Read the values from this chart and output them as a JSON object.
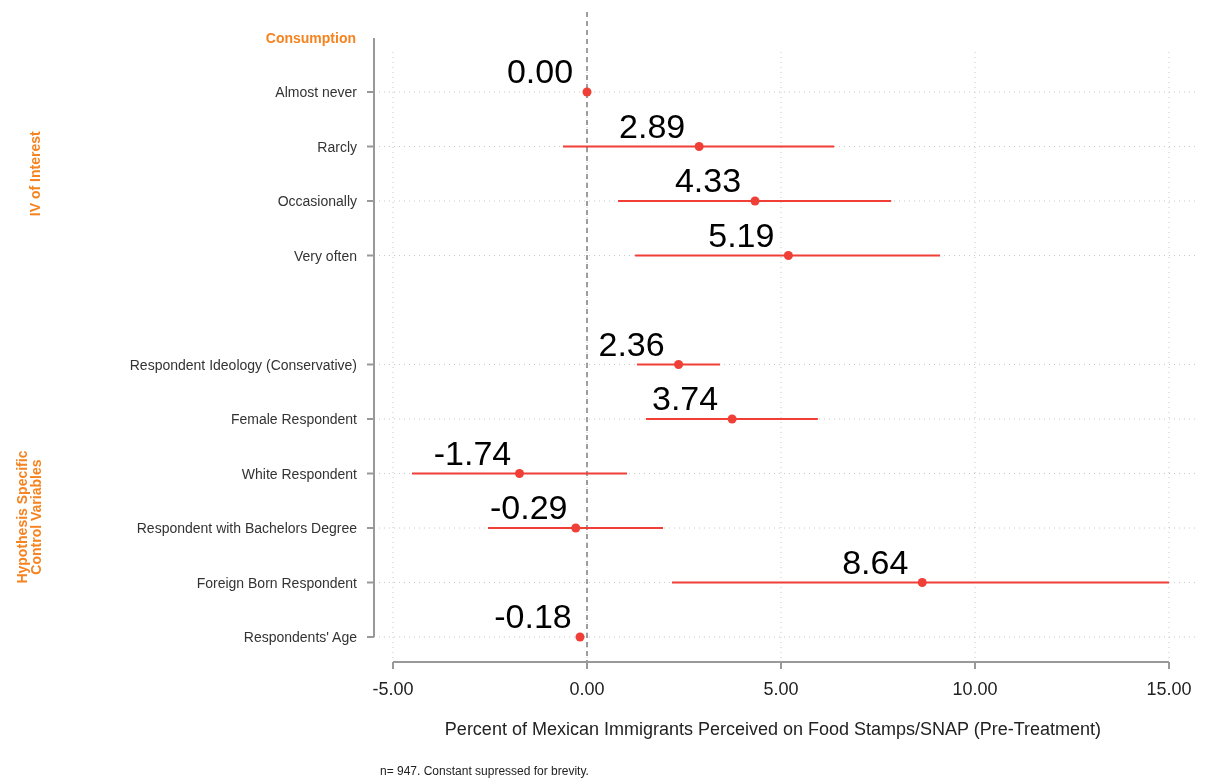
{
  "chart_data": {
    "type": "scatter",
    "orientation": "horizontal",
    "xlabel": "Percent of Mexican Immigrants Perceived on Food Stamps/SNAP (Pre-Treatment)",
    "categories": [
      "Almost never",
      "Rarcly",
      "Occasionally",
      "Very often",
      null,
      "Respondent Ideology (Conservative)",
      "Female Respondent",
      "White Respondent",
      "Respondent with Bachelors Degree",
      "Foreign Born Respondent",
      "Respondents' Age"
    ],
    "series": [
      {
        "color": "#ef3f36",
        "values": [
          0,
          2.89,
          4.33,
          5.19,
          null,
          2.36,
          3.74,
          -1.74,
          -0.29,
          8.64,
          -0.18
        ],
        "errors": [
          null,
          [
            -0.62,
            6.37
          ],
          [
            0.8,
            7.84
          ],
          [
            1.24,
            9.1
          ],
          null,
          [
            1.29,
            3.43
          ],
          [
            1.52,
            5.95
          ],
          [
            -4.51,
            1.03
          ],
          [
            -2.55,
            1.96
          ],
          [
            2.19,
            15
          ],
          null
        ],
        "value_labels": [
          "0.00",
          "2.89",
          "4.33",
          "5.19",
          null,
          "2.36",
          "3.74",
          "-1.74",
          "-0.29",
          "8.64",
          "-0.18"
        ]
      }
    ],
    "xlim": [
      -5,
      15
    ],
    "xticks": [
      {
        "value": -5,
        "label": "-5.00"
      },
      {
        "value": 0,
        "label": "0.00"
      },
      {
        "value": 5,
        "label": "5.00"
      },
      {
        "value": 10,
        "label": "10.00"
      },
      {
        "value": 15,
        "label": "15.00"
      }
    ],
    "grid": true,
    "marker": "circle",
    "ref_lines": [
      {
        "axis": "x",
        "value": 0,
        "color": "#808080",
        "line_style": "dashed"
      }
    ],
    "annotations": [
      "Consumption",
      "IV of Interest",
      "Hypothesis Specific Control Variables",
      "n= 947. Constant supressed for brevity."
    ]
  }
}
